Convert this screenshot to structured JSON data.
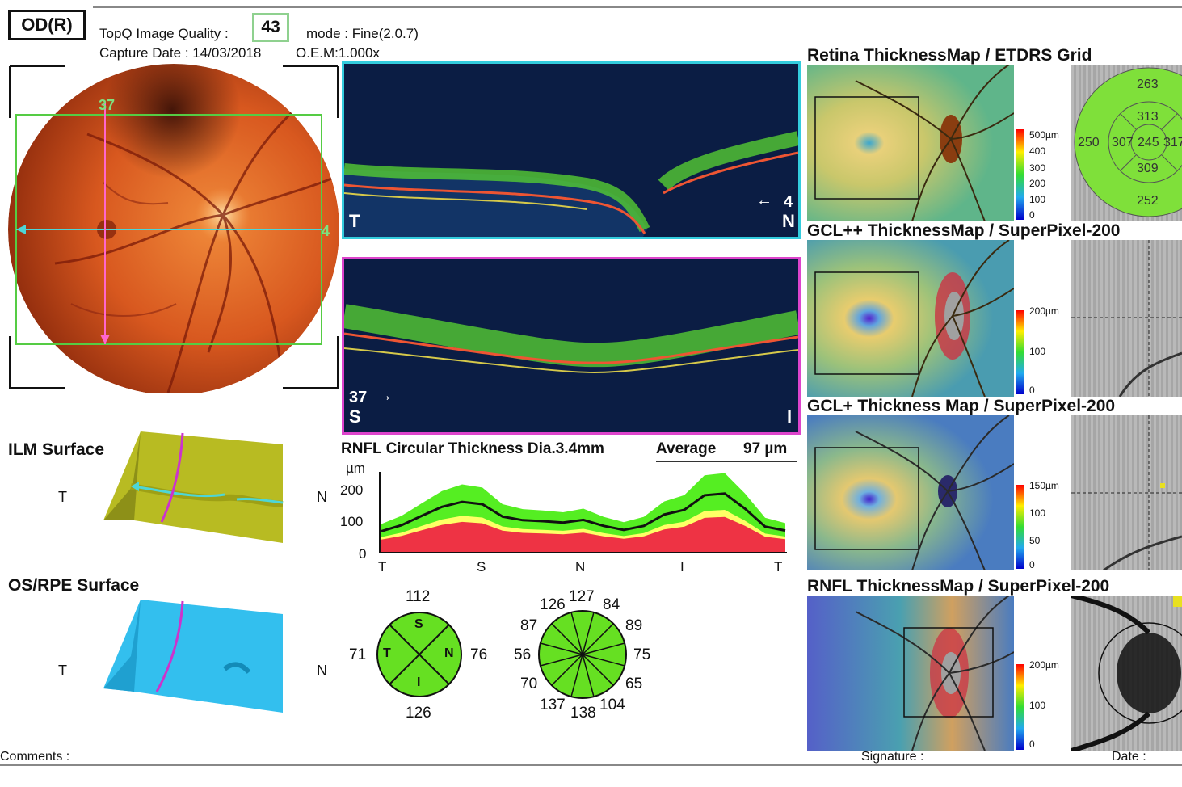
{
  "header": {
    "eye_label": "OD(R)",
    "quality_label": "TopQ Image Quality :",
    "quality_value": "43",
    "mode_label": "mode : Fine(2.0.7)",
    "capture_date": "Capture Date : 14/03/2018",
    "oem": "O.E.M:1.000x"
  },
  "fundus": {
    "scan_label_h": "4",
    "scan_label_v": "37",
    "colors": {
      "horizontal_line": "#4dd6d6",
      "vertical_line": "#ff66cc",
      "scan_box": "#55cc44"
    }
  },
  "oct_horizontal": {
    "left_label": "T",
    "right_num": "4",
    "right_label": "N",
    "border_color": "#33ccdd"
  },
  "oct_vertical": {
    "left_num": "37",
    "left_label": "S",
    "right_label": "I",
    "border_color": "#dd44cc"
  },
  "surfaces": {
    "ilm_title": "ILM Surface",
    "os_rpe_title": "OS/RPE Surface",
    "left_label": "T",
    "right_label": "N"
  },
  "rnfl_graph": {
    "title": "RNFL Circular Thickness Dia.3.4mm",
    "average_label": "Average",
    "average_value": "97 µm",
    "unit": "µm",
    "y_ticks": [
      "200",
      "100",
      "0"
    ],
    "x_ticks": [
      "T",
      "S",
      "N",
      "I",
      "T"
    ]
  },
  "chart_data": {
    "type": "area",
    "x_positions": [
      0,
      0.05,
      0.1,
      0.15,
      0.2,
      0.25,
      0.3,
      0.35,
      0.4,
      0.45,
      0.5,
      0.55,
      0.6,
      0.65,
      0.7,
      0.75,
      0.8,
      0.85,
      0.9,
      0.95,
      1.0
    ],
    "series": [
      {
        "values": [
          62,
          80,
          108,
          135,
          150,
          143,
          106,
          95,
          92,
          88,
          96,
          78,
          66,
          78,
          112,
          126,
          170,
          175,
          130,
          76,
          64
        ]
      }
    ],
    "band_colors": {
      "red": "#ee3344",
      "yellow": "#ffff66",
      "green": "#55ee22"
    },
    "xlim": [
      0,
      1
    ],
    "ylim": [
      0,
      240
    ]
  },
  "quadrant_chart": {
    "top": "112",
    "left": "71",
    "right": "76",
    "bottom": "126",
    "s": "S",
    "t": "T",
    "n": "N",
    "i": "I"
  },
  "clock_chart": {
    "values": [
      "127",
      "84",
      "89",
      "75",
      "65",
      "104",
      "138",
      "137",
      "70",
      "56",
      "87",
      "126"
    ]
  },
  "maps": [
    {
      "title": "Retina ThicknessMap / ETDRS Grid",
      "scale": [
        "500µm",
        "400",
        "300",
        "200",
        "100",
        "0"
      ]
    },
    {
      "title": "GCL++ ThicknessMap / SuperPixel-200",
      "scale": [
        "200µm",
        "100",
        "0"
      ]
    },
    {
      "title": "GCL+ Thickness Map / SuperPixel-200",
      "scale": [
        "150µm",
        "100",
        "50",
        "0"
      ]
    },
    {
      "title": "RNFL ThicknessMap / SuperPixel-200",
      "scale": [
        "200µm",
        "100",
        "0"
      ]
    }
  ],
  "etdrs": {
    "top": "263",
    "inner_top": "313",
    "far_left": "250",
    "inner_left": "307",
    "center": "245",
    "inner_right": "317",
    "inner_bottom": "309",
    "bottom": "252"
  },
  "footer": {
    "comments": "Comments :",
    "signature": "Signature :",
    "date": "Date :"
  }
}
